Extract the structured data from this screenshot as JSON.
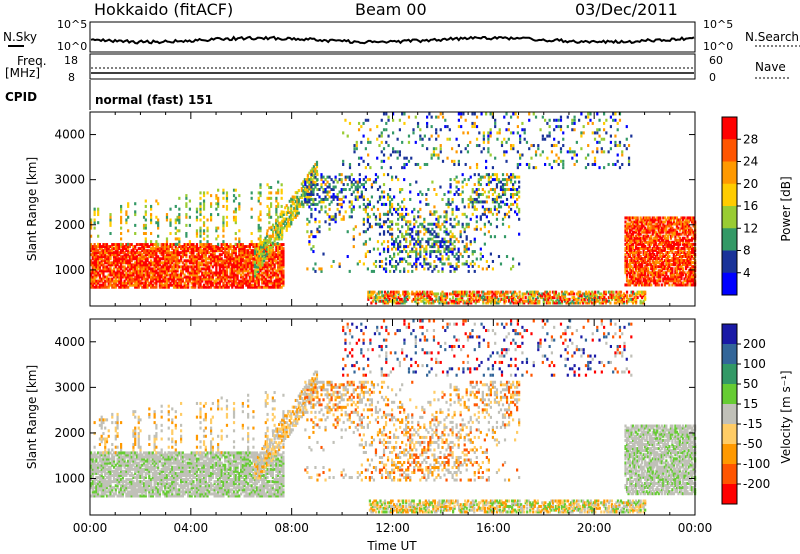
{
  "header": {
    "station": "Hokkaido (fitACF)",
    "beam": "Beam 00",
    "date": "03/Dec/2011"
  },
  "top_panels": {
    "nsky_label": "N.Sky",
    "nsky_ticks": [
      "10^5",
      "10^0"
    ],
    "nsearch_label": "N.Search",
    "nsearch_ticks": [
      "10^5",
      "10^0"
    ],
    "freq_label": "Freq.",
    "freq_unit": "[MHz]",
    "freq_ticks": [
      "18",
      "8"
    ],
    "nave_label": "Nave",
    "nave_ticks": [
      "60",
      "0"
    ],
    "cpid_label": "CPID",
    "cpid_text": "normal (fast) 151"
  },
  "chart_data": [
    {
      "type": "heatmap",
      "name": "power",
      "xlabel": "",
      "ylabel": "Slant Range [km]",
      "xlim": [
        0,
        24
      ],
      "ylim": [
        200,
        4500
      ],
      "yticks": [
        1000,
        2000,
        3000,
        4000
      ],
      "colorbar": {
        "label": "Power [dB]",
        "ticks": [
          "28",
          "24",
          "20",
          "16",
          "12",
          "8",
          "4"
        ],
        "colors": [
          "#ff0000",
          "#ff5500",
          "#ff9900",
          "#ffcc00",
          "#99cc33",
          "#339966",
          "#1a3399",
          "#0000ff"
        ]
      }
    },
    {
      "type": "heatmap",
      "name": "velocity",
      "xlabel": "Time UT",
      "ylabel": "Slant Range [km]",
      "xlim": [
        0,
        24
      ],
      "ylim": [
        200,
        4500
      ],
      "yticks": [
        1000,
        2000,
        3000,
        4000
      ],
      "xtick_labels": [
        "00:00",
        "04:00",
        "08:00",
        "12:00",
        "16:00",
        "20:00",
        "00:00"
      ],
      "colorbar": {
        "label": "Velocity [m s⁻¹]",
        "ticks": [
          "200",
          "100",
          "50",
          "15",
          "-15",
          "-50",
          "-100",
          "-200"
        ],
        "colors": [
          "#1a1aa6",
          "#336699",
          "#339966",
          "#66cc33",
          "#c0c0b8",
          "#ffcc66",
          "#ff9900",
          "#ff5500",
          "#ff0000"
        ]
      }
    }
  ]
}
